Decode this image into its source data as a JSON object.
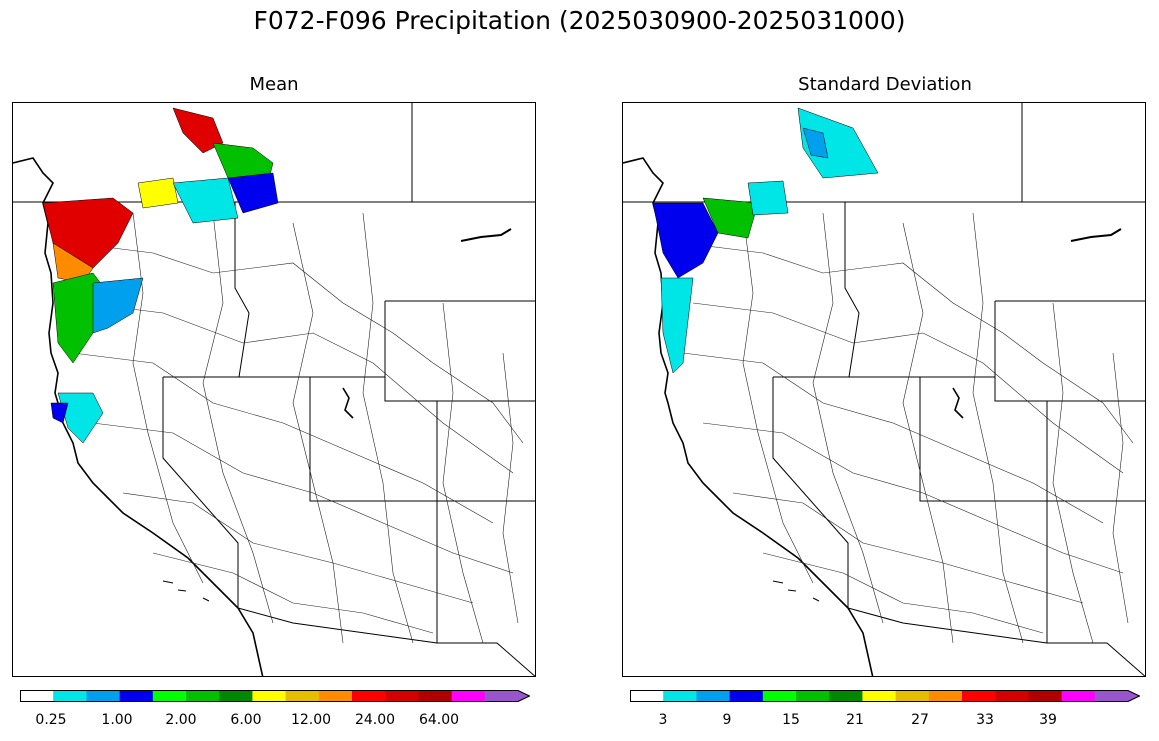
{
  "figure": {
    "title": "F072-F096 Precipitation (2025030900-2025031000)"
  },
  "panels": [
    {
      "id": "mean",
      "subtitle": "Mean",
      "colorbar": {
        "colors": [
          "#ffffff",
          "#00e5e5",
          "#00a0ee",
          "#0000ee",
          "#00ff00",
          "#00c000",
          "#008800",
          "#ffff00",
          "#e5be00",
          "#ff8c00",
          "#ff0000",
          "#d40000",
          "#b00000",
          "#ff00ff",
          "#9955cc"
        ],
        "tick_labels": [
          "0.25",
          "1.00",
          "2.00",
          "6.00",
          "12.00",
          "24.00",
          "64.00"
        ],
        "extend": "max"
      }
    },
    {
      "id": "stddev",
      "subtitle": "Standard Deviation",
      "colorbar": {
        "colors": [
          "#ffffff",
          "#00e5e5",
          "#00a0ee",
          "#0000ee",
          "#00ff00",
          "#00c000",
          "#008800",
          "#ffff00",
          "#e5be00",
          "#ff8c00",
          "#ff0000",
          "#d40000",
          "#b00000",
          "#ff00ff",
          "#9955cc"
        ],
        "tick_labels": [
          "3",
          "9",
          "15",
          "21",
          "27",
          "33",
          "39"
        ],
        "extend": "max"
      }
    }
  ]
}
